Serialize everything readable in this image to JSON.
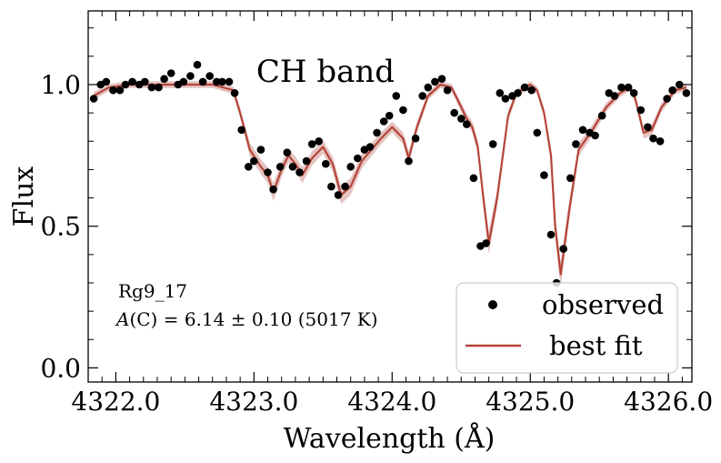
{
  "chart_data": {
    "type": "scatter",
    "title": "CH band",
    "xlabel": "Wavelength (Å)",
    "ylabel": "Flux",
    "xlim": [
      4321.8,
      4326.17
    ],
    "ylim": [
      -0.05,
      1.26
    ],
    "xticks": [
      4322.0,
      4323.0,
      4324.0,
      4325.0,
      4326.0
    ],
    "xtick_labels": [
      "4322.0",
      "4323.0",
      "4324.0",
      "4325.0",
      "4326.0"
    ],
    "yticks": [
      0.0,
      0.5,
      1.0
    ],
    "ytick_labels": [
      "0.0",
      "0.5",
      "1.0"
    ],
    "grid": false,
    "legend_position": "lower-right",
    "annotation": {
      "star": "Rg9_17",
      "abundance_prefix": "(C) = 6.14 ± 0.10 (5017 K)",
      "abundance_italic": "A"
    },
    "colors": {
      "observed": "#000000",
      "fit": "#b5453a",
      "band": "#dcb0ae"
    },
    "series": [
      {
        "name": "observed",
        "marker": "dot",
        "x": [
          4321.84,
          4321.89,
          4321.93,
          4321.98,
          4322.03,
          4322.07,
          4322.12,
          4322.17,
          4322.21,
          4322.26,
          4322.31,
          4322.35,
          4322.4,
          4322.45,
          4322.49,
          4322.54,
          4322.59,
          4322.63,
          4322.68,
          4322.73,
          4322.77,
          4322.82,
          4322.86,
          4322.91,
          4322.96,
          4323.0,
          4323.05,
          4323.1,
          4323.14,
          4323.19,
          4323.24,
          4323.28,
          4323.33,
          4323.38,
          4323.42,
          4323.47,
          4323.52,
          4323.56,
          4323.61,
          4323.66,
          4323.7,
          4323.75,
          4323.8,
          4323.84,
          4323.89,
          4323.94,
          4323.98,
          4324.03,
          4324.08,
          4324.12,
          4324.17,
          4324.22,
          4324.26,
          4324.31,
          4324.36,
          4324.4,
          4324.45,
          4324.5,
          4324.54,
          4324.59,
          4324.64,
          4324.68,
          4324.73,
          4324.78,
          4324.82,
          4324.87,
          4324.91,
          4324.96,
          4325.01,
          4325.05,
          4325.1,
          4325.15,
          4325.19,
          4325.24,
          4325.29,
          4325.33,
          4325.38,
          4325.43,
          4325.47,
          4325.52,
          4325.57,
          4325.61,
          4325.66,
          4325.71,
          4325.75,
          4325.8,
          4325.85,
          4325.89,
          4325.94,
          4325.99,
          4326.03,
          4326.08,
          4326.13
        ],
        "y": [
          0.95,
          1.0,
          1.01,
          0.98,
          0.98,
          1.0,
          1.01,
          1.0,
          1.01,
          0.99,
          0.99,
          1.02,
          1.04,
          1.0,
          1.01,
          1.03,
          1.07,
          1.01,
          1.03,
          1.01,
          1.01,
          1.01,
          0.97,
          0.84,
          0.71,
          0.73,
          0.77,
          0.69,
          0.63,
          0.71,
          0.76,
          0.71,
          0.69,
          0.73,
          0.79,
          0.8,
          0.72,
          0.64,
          0.61,
          0.64,
          0.71,
          0.74,
          0.77,
          0.78,
          0.83,
          0.87,
          0.89,
          0.96,
          0.91,
          0.73,
          0.81,
          0.96,
          0.99,
          1.01,
          1.02,
          0.98,
          0.9,
          0.88,
          0.86,
          0.67,
          0.43,
          0.44,
          0.79,
          0.97,
          0.95,
          0.96,
          0.97,
          0.99,
          0.98,
          0.83,
          0.68,
          0.47,
          0.3,
          0.42,
          0.67,
          0.79,
          0.84,
          0.83,
          0.82,
          0.89,
          0.97,
          0.96,
          0.99,
          0.99,
          0.97,
          0.91,
          0.85,
          0.81,
          0.8,
          0.95,
          0.98,
          1.0,
          0.97
        ]
      },
      {
        "name": "best fit",
        "marker": "line",
        "x": [
          4321.84,
          4321.95,
          4322.1,
          4322.3,
          4322.5,
          4322.7,
          4322.85,
          4322.9,
          4322.97,
          4323.05,
          4323.1,
          4323.14,
          4323.2,
          4323.25,
          4323.3,
          4323.35,
          4323.42,
          4323.5,
          4323.57,
          4323.63,
          4323.7,
          4323.78,
          4323.85,
          4323.92,
          4324.0,
          4324.08,
          4324.12,
          4324.18,
          4324.26,
          4324.35,
          4324.43,
          4324.5,
          4324.54,
          4324.58,
          4324.62,
          4324.66,
          4324.7,
          4324.76,
          4324.84,
          4324.9,
          4325.0,
          4325.05,
          4325.1,
          4325.15,
          4325.18,
          4325.22,
          4325.28,
          4325.35,
          4325.45,
          4325.55,
          4325.65,
          4325.72,
          4325.76,
          4325.82,
          4325.88,
          4325.95,
          4326.05,
          4326.13
        ],
        "y": [
          0.96,
          0.99,
          1.0,
          1.0,
          1.0,
          1.0,
          0.98,
          0.9,
          0.77,
          0.71,
          0.68,
          0.62,
          0.7,
          0.75,
          0.72,
          0.68,
          0.74,
          0.78,
          0.72,
          0.61,
          0.64,
          0.73,
          0.77,
          0.81,
          0.85,
          0.81,
          0.74,
          0.85,
          0.96,
          1.0,
          0.99,
          0.92,
          0.88,
          0.85,
          0.78,
          0.6,
          0.44,
          0.6,
          0.89,
          0.97,
          1.0,
          0.98,
          0.9,
          0.75,
          0.5,
          0.33,
          0.55,
          0.77,
          0.84,
          0.92,
          0.97,
          0.99,
          0.95,
          0.83,
          0.84,
          0.92,
          0.98,
          0.99
        ]
      }
    ]
  }
}
